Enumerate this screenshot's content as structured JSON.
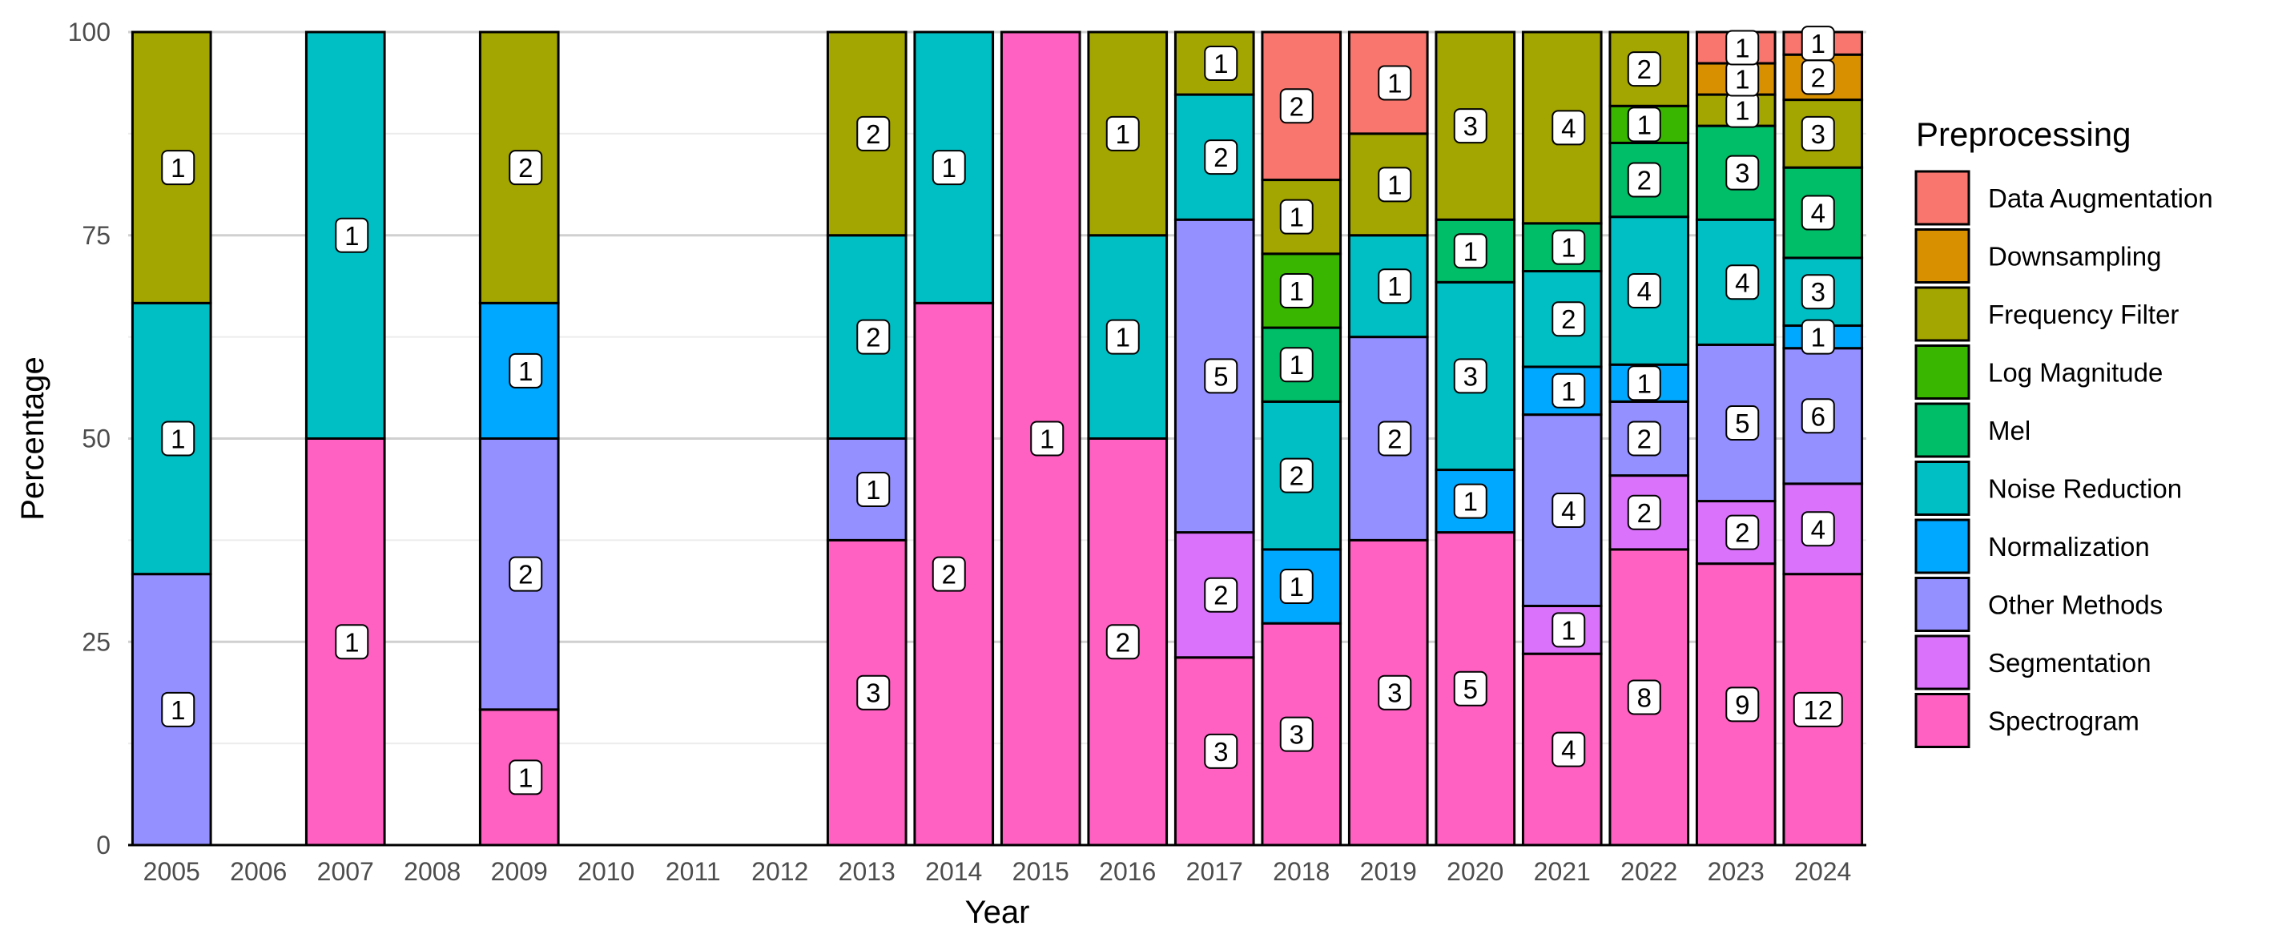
{
  "chart_data": {
    "type": "bar",
    "stacked": "percent",
    "title": "",
    "xlabel": "Year",
    "ylabel": "Percentage",
    "ylim": [
      0,
      100
    ],
    "yticks": [
      "0",
      "25",
      "50",
      "75",
      "100"
    ],
    "grid": true,
    "legend_title": "Preprocessing",
    "legend_position": "right",
    "categories": [
      "2005",
      "2006",
      "2007",
      "2008",
      "2009",
      "2010",
      "2011",
      "2012",
      "2013",
      "2014",
      "2015",
      "2016",
      "2017",
      "2018",
      "2019",
      "2020",
      "2021",
      "2022",
      "2023",
      "2024"
    ],
    "series": [
      {
        "name": "Spectrogram",
        "color": "#FF61C3",
        "values": [
          0,
          0,
          1,
          0,
          1,
          0,
          0,
          0,
          3,
          2,
          1,
          2,
          3,
          3,
          3,
          5,
          4,
          8,
          9,
          12
        ]
      },
      {
        "name": "Segmentation",
        "color": "#DB72FB",
        "values": [
          0,
          0,
          0,
          0,
          0,
          0,
          0,
          0,
          0,
          0,
          0,
          0,
          2,
          0,
          0,
          0,
          1,
          2,
          2,
          4
        ]
      },
      {
        "name": "Other Methods",
        "color": "#9590FF",
        "values": [
          1,
          0,
          0,
          0,
          2,
          0,
          0,
          0,
          1,
          0,
          0,
          0,
          5,
          0,
          2,
          0,
          4,
          2,
          5,
          6
        ]
      },
      {
        "name": "Normalization",
        "color": "#00A9FF",
        "values": [
          0,
          0,
          0,
          0,
          1,
          0,
          0,
          0,
          0,
          0,
          0,
          0,
          0,
          1,
          0,
          1,
          1,
          1,
          0,
          1
        ]
      },
      {
        "name": "Noise Reduction",
        "color": "#00BFC4",
        "values": [
          1,
          0,
          1,
          0,
          0,
          0,
          0,
          0,
          2,
          1,
          0,
          1,
          2,
          2,
          1,
          3,
          2,
          4,
          4,
          3
        ]
      },
      {
        "name": "Mel",
        "color": "#00BE67",
        "values": [
          0,
          0,
          0,
          0,
          0,
          0,
          0,
          0,
          0,
          0,
          0,
          0,
          0,
          1,
          0,
          1,
          1,
          2,
          3,
          4
        ]
      },
      {
        "name": "Log Magnitude",
        "color": "#39B600",
        "values": [
          0,
          0,
          0,
          0,
          0,
          0,
          0,
          0,
          0,
          0,
          0,
          0,
          0,
          1,
          0,
          0,
          0,
          1,
          0,
          0
        ]
      },
      {
        "name": "Frequency Filter",
        "color": "#A3A500",
        "values": [
          1,
          0,
          0,
          0,
          2,
          0,
          0,
          0,
          2,
          0,
          0,
          1,
          1,
          1,
          1,
          3,
          4,
          2,
          1,
          3
        ]
      },
      {
        "name": "Downsampling",
        "color": "#D89000",
        "values": [
          0,
          0,
          0,
          0,
          0,
          0,
          0,
          0,
          0,
          0,
          0,
          0,
          0,
          0,
          0,
          0,
          0,
          0,
          1,
          2
        ]
      },
      {
        "name": "Data Augmentation",
        "color": "#F8766D",
        "values": [
          0,
          0,
          0,
          0,
          0,
          0,
          0,
          0,
          0,
          0,
          0,
          0,
          0,
          2,
          1,
          0,
          0,
          0,
          1,
          1
        ]
      }
    ]
  }
}
